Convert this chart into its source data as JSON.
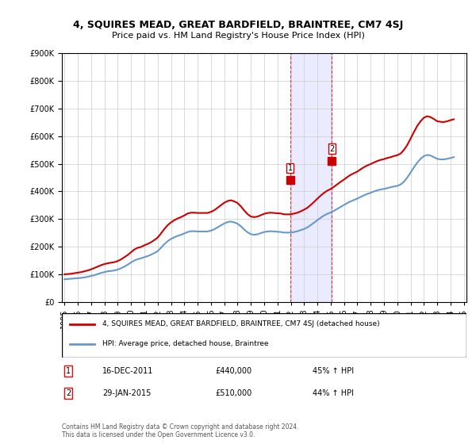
{
  "title": "4, SQUIRES MEAD, GREAT BARDFIELD, BRAINTREE, CM7 4SJ",
  "subtitle": "Price paid vs. HM Land Registry's House Price Index (HPI)",
  "legend_label_red": "4, SQUIRES MEAD, GREAT BARDFIELD, BRAINTREE, CM7 4SJ (detached house)",
  "legend_label_blue": "HPI: Average price, detached house, Braintree",
  "footnote": "Contains HM Land Registry data © Crown copyright and database right 2024.\nThis data is licensed under the Open Government Licence v3.0.",
  "transaction1_label": "1",
  "transaction1_date": "16-DEC-2011",
  "transaction1_price": "£440,000",
  "transaction1_hpi": "45% ↑ HPI",
  "transaction2_label": "2",
  "transaction2_date": "29-JAN-2015",
  "transaction2_price": "£510,000",
  "transaction2_hpi": "44% ↑ HPI",
  "ylim": [
    0,
    900000
  ],
  "yticks": [
    0,
    100000,
    200000,
    300000,
    400000,
    500000,
    600000,
    700000,
    800000,
    900000
  ],
  "background_color": "#ffffff",
  "grid_color": "#cccccc",
  "red_color": "#cc0000",
  "blue_color": "#6699cc",
  "marker_color_red": "#cc0000",
  "marker_color_blue": "#6699cc",
  "transaction1_x": 2011.96,
  "transaction1_y": 440000,
  "transaction2_x": 2015.08,
  "transaction2_y": 510000,
  "hpi_dates": [
    1995.0,
    1995.25,
    1995.5,
    1995.75,
    1996.0,
    1996.25,
    1996.5,
    1996.75,
    1997.0,
    1997.25,
    1997.5,
    1997.75,
    1998.0,
    1998.25,
    1998.5,
    1998.75,
    1999.0,
    1999.25,
    1999.5,
    1999.75,
    2000.0,
    2000.25,
    2000.5,
    2000.75,
    2001.0,
    2001.25,
    2001.5,
    2001.75,
    2002.0,
    2002.25,
    2002.5,
    2002.75,
    2003.0,
    2003.25,
    2003.5,
    2003.75,
    2004.0,
    2004.25,
    2004.5,
    2004.75,
    2005.0,
    2005.25,
    2005.5,
    2005.75,
    2006.0,
    2006.25,
    2006.5,
    2006.75,
    2007.0,
    2007.25,
    2007.5,
    2007.75,
    2008.0,
    2008.25,
    2008.5,
    2008.75,
    2009.0,
    2009.25,
    2009.5,
    2009.75,
    2010.0,
    2010.25,
    2010.5,
    2010.75,
    2011.0,
    2011.25,
    2011.5,
    2011.75,
    2012.0,
    2012.25,
    2012.5,
    2012.75,
    2013.0,
    2013.25,
    2013.5,
    2013.75,
    2014.0,
    2014.25,
    2014.5,
    2014.75,
    2015.0,
    2015.25,
    2015.5,
    2015.75,
    2016.0,
    2016.25,
    2016.5,
    2016.75,
    2017.0,
    2017.25,
    2017.5,
    2017.75,
    2018.0,
    2018.25,
    2018.5,
    2018.75,
    2019.0,
    2019.25,
    2019.5,
    2019.75,
    2020.0,
    2020.25,
    2020.5,
    2020.75,
    2021.0,
    2021.25,
    2021.5,
    2021.75,
    2022.0,
    2022.25,
    2022.5,
    2022.75,
    2023.0,
    2023.25,
    2023.5,
    2023.75,
    2024.0,
    2024.25
  ],
  "hpi_values": [
    82000,
    83000,
    84000,
    85000,
    86000,
    87000,
    89000,
    91000,
    94000,
    97000,
    101000,
    105000,
    108000,
    111000,
    112000,
    114000,
    117000,
    122000,
    128000,
    135000,
    143000,
    150000,
    155000,
    158000,
    162000,
    166000,
    171000,
    177000,
    184000,
    196000,
    209000,
    220000,
    228000,
    234000,
    239000,
    243000,
    248000,
    253000,
    256000,
    256000,
    255000,
    255000,
    255000,
    255000,
    258000,
    263000,
    270000,
    277000,
    284000,
    289000,
    291000,
    288000,
    283000,
    274000,
    262000,
    252000,
    245000,
    243000,
    245000,
    249000,
    253000,
    255000,
    256000,
    255000,
    254000,
    253000,
    251000,
    251000,
    251000,
    253000,
    256000,
    260000,
    264000,
    270000,
    278000,
    287000,
    296000,
    305000,
    313000,
    319000,
    324000,
    330000,
    337000,
    344000,
    351000,
    358000,
    364000,
    369000,
    374000,
    380000,
    386000,
    391000,
    395000,
    400000,
    404000,
    407000,
    409000,
    412000,
    415000,
    418000,
    420000,
    425000,
    435000,
    450000,
    468000,
    487000,
    504000,
    518000,
    528000,
    532000,
    530000,
    524000,
    518000,
    516000,
    516000,
    518000,
    521000,
    524000
  ],
  "red_dates": [
    1995.0,
    1995.25,
    1995.5,
    1995.75,
    1996.0,
    1996.25,
    1996.5,
    1996.75,
    1997.0,
    1997.25,
    1997.5,
    1997.75,
    1998.0,
    1998.25,
    1998.5,
    1998.75,
    1999.0,
    1999.25,
    1999.5,
    1999.75,
    2000.0,
    2000.25,
    2000.5,
    2000.75,
    2001.0,
    2001.25,
    2001.5,
    2001.75,
    2002.0,
    2002.25,
    2002.5,
    2002.75,
    2003.0,
    2003.25,
    2003.5,
    2003.75,
    2004.0,
    2004.25,
    2004.5,
    2004.75,
    2005.0,
    2005.25,
    2005.5,
    2005.75,
    2006.0,
    2006.25,
    2006.5,
    2006.75,
    2007.0,
    2007.25,
    2007.5,
    2007.75,
    2008.0,
    2008.25,
    2008.5,
    2008.75,
    2009.0,
    2009.25,
    2009.5,
    2009.75,
    2010.0,
    2010.25,
    2010.5,
    2010.75,
    2011.0,
    2011.25,
    2011.5,
    2011.75,
    2012.0,
    2012.25,
    2012.5,
    2012.75,
    2013.0,
    2013.25,
    2013.5,
    2013.75,
    2014.0,
    2014.25,
    2014.5,
    2014.75,
    2015.0,
    2015.25,
    2015.5,
    2015.75,
    2016.0,
    2016.25,
    2016.5,
    2016.75,
    2017.0,
    2017.25,
    2017.5,
    2017.75,
    2018.0,
    2018.25,
    2018.5,
    2018.75,
    2019.0,
    2019.25,
    2019.5,
    2019.75,
    2020.0,
    2020.25,
    2020.5,
    2020.75,
    2021.0,
    2021.25,
    2021.5,
    2021.75,
    2022.0,
    2022.25,
    2022.5,
    2022.75,
    2023.0,
    2023.25,
    2023.5,
    2023.75,
    2024.0,
    2024.25
  ],
  "red_values": [
    100000,
    101000,
    102000,
    104000,
    106000,
    108000,
    111000,
    114000,
    118000,
    123000,
    128000,
    133000,
    137000,
    140000,
    142000,
    144000,
    148000,
    154000,
    162000,
    170000,
    180000,
    190000,
    196000,
    199000,
    205000,
    210000,
    216000,
    224000,
    233000,
    248000,
    264000,
    278000,
    288000,
    296000,
    302000,
    307000,
    313000,
    320000,
    323000,
    323000,
    322000,
    322000,
    322000,
    322000,
    326000,
    332000,
    341000,
    350000,
    359000,
    365000,
    368000,
    364000,
    358000,
    346000,
    331000,
    318000,
    309000,
    307000,
    309000,
    314000,
    319000,
    322000,
    323000,
    322000,
    321000,
    320000,
    317000,
    317000,
    317000,
    320000,
    323000,
    328000,
    334000,
    341000,
    351000,
    362000,
    374000,
    385000,
    395000,
    403000,
    409000,
    417000,
    426000,
    435000,
    443000,
    452000,
    460000,
    466000,
    472000,
    480000,
    488000,
    494000,
    499000,
    505000,
    510000,
    514000,
    517000,
    521000,
    524000,
    528000,
    531000,
    537000,
    550000,
    568000,
    591000,
    615000,
    637000,
    654000,
    667000,
    672000,
    669000,
    662000,
    654000,
    652000,
    651000,
    654000,
    658000,
    661000
  ],
  "xtick_years": [
    1995,
    1996,
    1997,
    1998,
    1999,
    2000,
    2001,
    2002,
    2003,
    2004,
    2005,
    2006,
    2007,
    2008,
    2009,
    2010,
    2011,
    2012,
    2013,
    2014,
    2015,
    2016,
    2017,
    2018,
    2019,
    2020,
    2021,
    2022,
    2023,
    2024,
    2025
  ]
}
